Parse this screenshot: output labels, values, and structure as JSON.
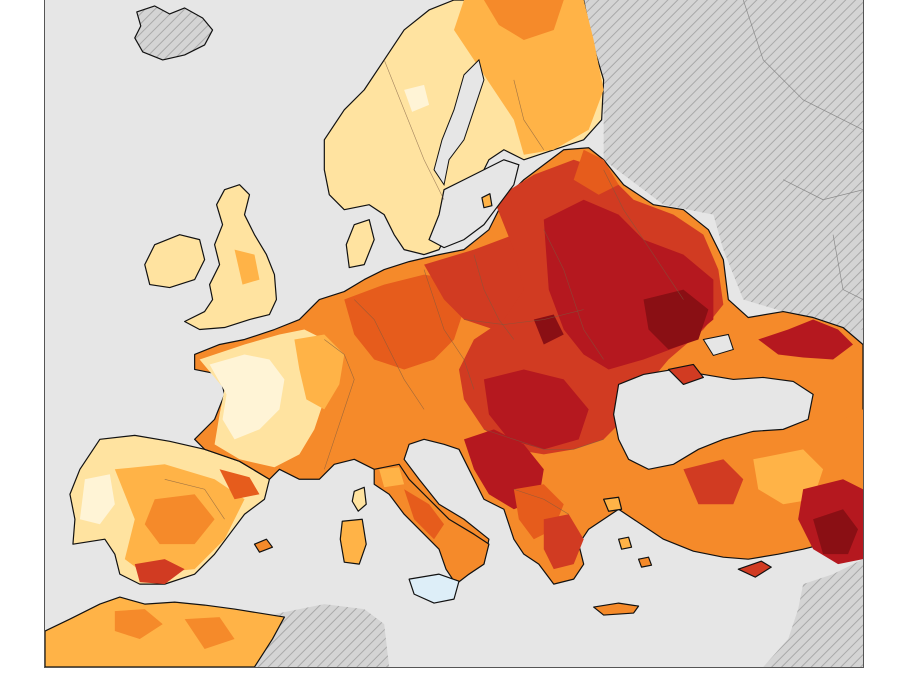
{
  "map": {
    "colors": {
      "sea": "#e6e6e6",
      "outside_area": "#d4d4d4",
      "hatch": "#a9a9a9",
      "class_1": "#fff4d6",
      "class_2": "#ffe3a0",
      "class_3": "#ffb347",
      "class_4": "#f58a2a",
      "class_5": "#e65c1c",
      "class_6": "#d13b22",
      "class_7": "#b5181f",
      "class_8": "#8a0f14",
      "no_data": "#ddeef8"
    }
  }
}
